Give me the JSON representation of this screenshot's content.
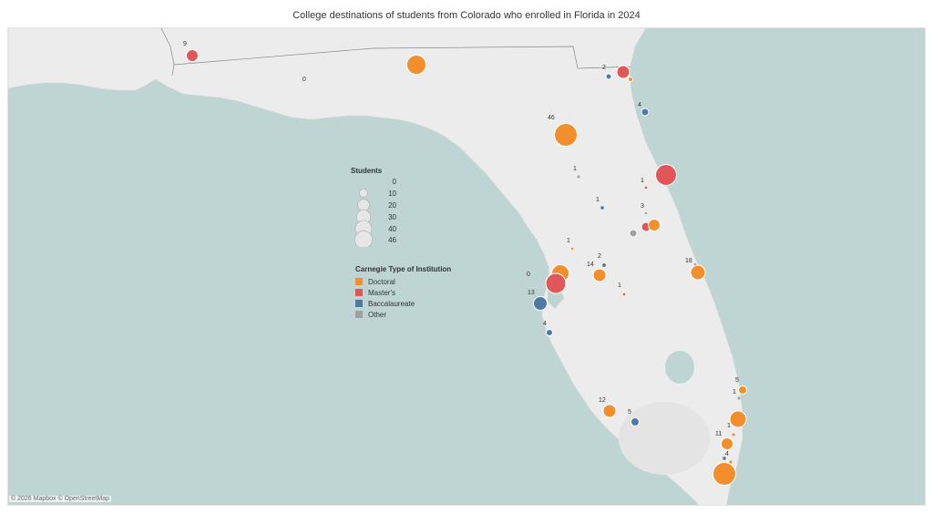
{
  "title": "College destinations of students from Colorado who enrolled in  Florida in 2024",
  "attribution": "© 2026 Mapbox © OpenStreetMap",
  "colors": {
    "doctoral": "#f28e2b",
    "masters": "#e15759",
    "baccalaureate": "#4e79a7",
    "other": "#a0a0a0",
    "water": "#bfd5d3",
    "land": "#ececec"
  },
  "size_legend": {
    "title": "Students",
    "values": [
      "0",
      "10",
      "20",
      "30",
      "40",
      "46"
    ]
  },
  "color_legend": {
    "title": "Carnegie Type of Institution",
    "items": [
      {
        "label": "Doctoral",
        "key": "doctoral"
      },
      {
        "label": "Master's",
        "key": "masters"
      },
      {
        "label": "Baccalaureate",
        "key": "baccalaureate"
      },
      {
        "label": "Other",
        "key": "other"
      }
    ]
  },
  "point_labels": [
    "9",
    "0",
    "2",
    "4",
    "46",
    "1",
    "1",
    "1",
    "3",
    "1",
    "14",
    "2",
    "1",
    "0",
    "18",
    "13",
    "4",
    "5",
    "1",
    "12",
    "5",
    "1",
    "11",
    "4"
  ]
}
